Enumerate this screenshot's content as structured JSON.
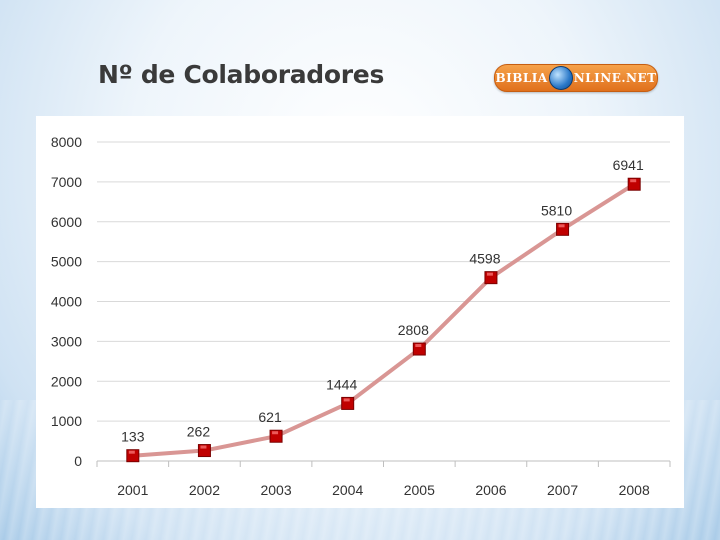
{
  "slide": {
    "title": "Nº de Colaboradores",
    "logo_text_left": "BIBLIA",
    "logo_text_right": "NLINE.NET",
    "logo_icon": "globe-icon"
  },
  "chart_data": {
    "type": "line",
    "title": "",
    "xlabel": "",
    "ylabel": "",
    "categories": [
      "2001",
      "2002",
      "2003",
      "2004",
      "2005",
      "2006",
      "2007",
      "2008"
    ],
    "values": [
      133,
      262,
      621,
      1444,
      2808,
      4598,
      5810,
      6941
    ],
    "ylim": [
      0,
      8000
    ],
    "yticks": [
      0,
      1000,
      2000,
      3000,
      4000,
      5000,
      6000,
      7000,
      8000
    ],
    "grid": true,
    "legend": "none",
    "line_color": "#d99694",
    "marker_color": "#c00000",
    "data_labels": true
  }
}
